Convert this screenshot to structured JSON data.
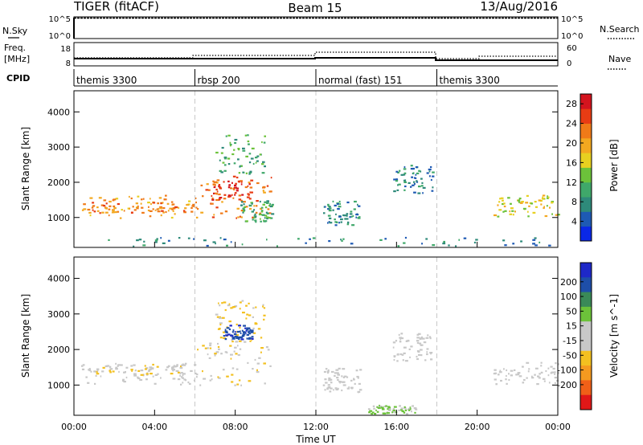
{
  "header": {
    "left": "TIGER (fitACF)",
    "center": "Beam 15",
    "right": "13/Aug/2016"
  },
  "nsky_panel": {
    "left_label": "N.Sky",
    "right_label": "N.Search",
    "left_ticks": [
      "10^5",
      "10^0"
    ],
    "right_ticks": [
      "10^5",
      "10^0"
    ]
  },
  "freq_panel": {
    "label_line1": "Freq.",
    "label_line2": "[MHz]",
    "left_ticks": [
      "18",
      "8"
    ],
    "right_ticks": [
      "60",
      "0"
    ],
    "right_label": "Nave"
  },
  "cpid": {
    "label": "CPID",
    "segments": [
      {
        "name": "themis 3300",
        "start": 0,
        "end": 6
      },
      {
        "name": "rbsp 200",
        "start": 6,
        "end": 12
      },
      {
        "name": "normal (fast) 151",
        "start": 12,
        "end": 18
      },
      {
        "name": "themis 3300",
        "start": 18,
        "end": 24
      }
    ]
  },
  "chart_data": [
    {
      "type": "heatmap",
      "title": "",
      "xlabel": "Time UT",
      "ylabel": "Slant Range [km]",
      "xlim": [
        0,
        24
      ],
      "ylim": [
        150,
        4600
      ],
      "x_ticks": [
        "00:00",
        "04:00",
        "08:00",
        "12:00",
        "16:00",
        "20:00",
        "00:00"
      ],
      "y_ticks": [
        1000,
        2000,
        3000,
        4000
      ],
      "colorbar": {
        "label": "Power [dB]",
        "ticks": [
          4,
          8,
          12,
          16,
          20,
          24,
          28
        ],
        "range": [
          0,
          30
        ],
        "colors": [
          "#0a28e6",
          "#1e5ab4",
          "#2e8a7a",
          "#3fa86a",
          "#6cc23a",
          "#e8d020",
          "#f3a820",
          "#f07a18",
          "#e83c14",
          "#d4141e"
        ]
      },
      "regions": [
        {
          "t": [
            0.2,
            6.2
          ],
          "r": [
            1000,
            1650
          ],
          "power": 20
        },
        {
          "t": [
            0.3,
            6.0
          ],
          "r": [
            1150,
            1450
          ],
          "power": 22
        },
        {
          "t": [
            6.0,
            9.8
          ],
          "r": [
            1000,
            2200
          ],
          "power": 22
        },
        {
          "t": [
            6.8,
            8.8
          ],
          "r": [
            1500,
            2100
          ],
          "power": 26
        },
        {
          "t": [
            7.0,
            9.5
          ],
          "r": [
            2200,
            3400
          ],
          "power": 11
        },
        {
          "t": [
            8.2,
            9.8
          ],
          "r": [
            900,
            1500
          ],
          "power": 10
        },
        {
          "t": [
            12.3,
            14.2
          ],
          "r": [
            800,
            1500
          ],
          "power": 8
        },
        {
          "t": [
            15.8,
            17.8
          ],
          "r": [
            1700,
            2500
          ],
          "power": 7
        },
        {
          "t": [
            20.8,
            24.0
          ],
          "r": [
            1050,
            1650
          ],
          "power": 17
        },
        {
          "t": [
            1.5,
            23.8
          ],
          "r": [
            200,
            450
          ],
          "power": 7
        }
      ]
    },
    {
      "type": "heatmap",
      "title": "",
      "xlabel": "Time UT",
      "ylabel": "Slant Range [km]",
      "xlim": [
        0,
        24
      ],
      "ylim": [
        150,
        4600
      ],
      "x_ticks": [
        "00:00",
        "04:00",
        "08:00",
        "12:00",
        "16:00",
        "20:00",
        "00:00"
      ],
      "y_ticks": [
        1000,
        2000,
        3000,
        4000
      ],
      "colorbar": {
        "label": "Velocity [m s^-1]",
        "ticks": [
          "200",
          "100",
          "50",
          "15",
          "-15",
          "-50",
          "-100",
          "-200"
        ],
        "range": [
          -250,
          250
        ],
        "colors": [
          "#1e28c8",
          "#1e4ea8",
          "#3a8a58",
          "#6cc23a",
          "#c8c8c8",
          "#c8c8c8",
          "#f3c020",
          "#f59a20",
          "#f06018",
          "#e01818"
        ]
      },
      "regions": [
        {
          "t": [
            0.2,
            6.2
          ],
          "r": [
            1000,
            1650
          ],
          "velocity": 0
        },
        {
          "t": [
            1.0,
            5.5
          ],
          "r": [
            1250,
            1600
          ],
          "velocity": -40
        },
        {
          "t": [
            6.0,
            9.8
          ],
          "r": [
            1000,
            2200
          ],
          "velocity": -40
        },
        {
          "t": [
            7.0,
            9.5
          ],
          "r": [
            2200,
            3400
          ],
          "velocity": -60
        },
        {
          "t": [
            7.4,
            8.8
          ],
          "r": [
            2300,
            2700
          ],
          "velocity": 180
        },
        {
          "t": [
            12.3,
            14.2
          ],
          "r": [
            800,
            1500
          ],
          "velocity": 0
        },
        {
          "t": [
            15.8,
            17.8
          ],
          "r": [
            1700,
            2500
          ],
          "velocity": 0
        },
        {
          "t": [
            20.8,
            24.0
          ],
          "r": [
            1050,
            1650
          ],
          "velocity": 0
        },
        {
          "t": [
            14.5,
            17.0
          ],
          "r": [
            200,
            450
          ],
          "velocity": 60
        }
      ]
    }
  ]
}
